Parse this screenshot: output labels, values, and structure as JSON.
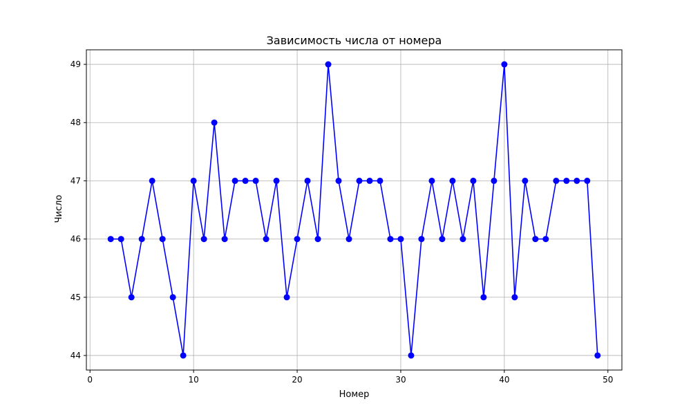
{
  "chart_data": {
    "type": "line",
    "title": "Зависимость числа от номера",
    "xlabel": "Номер",
    "ylabel": "Число",
    "xlim": [
      -0.35,
      51.35
    ],
    "ylim": [
      43.75,
      49.25
    ],
    "xticks": [
      0,
      10,
      20,
      30,
      40,
      50
    ],
    "yticks": [
      44,
      45,
      46,
      47,
      48,
      49
    ],
    "grid": true,
    "legend": "none",
    "series": [
      {
        "color": "#0000ff",
        "marker": "circle",
        "x": [
          2,
          3,
          4,
          5,
          6,
          7,
          8,
          9,
          10,
          11,
          12,
          13,
          14,
          15,
          16,
          17,
          18,
          19,
          20,
          21,
          22,
          23,
          24,
          25,
          26,
          27,
          28,
          29,
          30,
          31,
          32,
          33,
          34,
          35,
          36,
          37,
          38,
          39,
          40,
          41,
          42,
          43,
          44,
          45,
          46,
          47,
          48,
          49
        ],
        "y": [
          46,
          46,
          45,
          46,
          47,
          46,
          45,
          44,
          47,
          46,
          48,
          46,
          47,
          47,
          47,
          46,
          47,
          45,
          46,
          47,
          46,
          49,
          47,
          46,
          47,
          47,
          47,
          46,
          46,
          44,
          46,
          47,
          46,
          47,
          46,
          47,
          45,
          47,
          49,
          45,
          47,
          46,
          46,
          47,
          47,
          47,
          47,
          44
        ]
      }
    ]
  }
}
